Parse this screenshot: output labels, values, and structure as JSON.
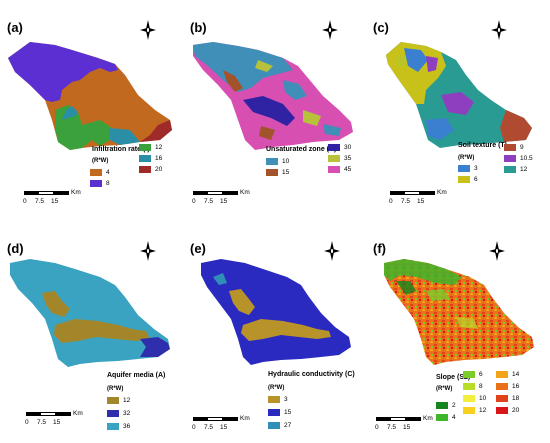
{
  "scalebar": {
    "unit": "Km",
    "ticks": [
      "0",
      "7.5",
      "15"
    ]
  },
  "rw_label": "(R*W)",
  "panels": [
    {
      "id": "a",
      "label": "(a)",
      "legend_title": "Infiltration rate (I)",
      "classes": [
        {
          "value": "4",
          "color": "#c1691f"
        },
        {
          "value": "8",
          "color": "#5b2fd1"
        },
        {
          "value": "12",
          "color": "#3aa13d"
        },
        {
          "value": "16",
          "color": "#2a8fa6"
        },
        {
          "value": "20",
          "color": "#9e2a2a"
        }
      ]
    },
    {
      "id": "b",
      "label": "(b)",
      "legend_title": "Unsaturated zone (N)",
      "classes": [
        {
          "value": "10",
          "color": "#3f8fb8"
        },
        {
          "value": "15",
          "color": "#a2532a"
        },
        {
          "value": "30",
          "color": "#2f23a3"
        },
        {
          "value": "35",
          "color": "#b7c23a"
        },
        {
          "value": "45",
          "color": "#d64fb1"
        }
      ]
    },
    {
      "id": "c",
      "label": "(c)",
      "legend_title": "Soil texture (T)",
      "classes": [
        {
          "value": "3",
          "color": "#3a7fd0"
        },
        {
          "value": "6",
          "color": "#c8c11a"
        },
        {
          "value": "9",
          "color": "#b04a30"
        },
        {
          "value": "10.5",
          "color": "#8e3fbf"
        },
        {
          "value": "12",
          "color": "#2a9b93"
        }
      ]
    },
    {
      "id": "d",
      "label": "(d)",
      "legend_title": "Aquifer media (A)",
      "classes": [
        {
          "value": "12",
          "color": "#a3862a"
        },
        {
          "value": "32",
          "color": "#2f2fae"
        },
        {
          "value": "36",
          "color": "#3aa3c2"
        }
      ]
    },
    {
      "id": "e",
      "label": "(e)",
      "legend_title": "Hydraulic conductivity (C)",
      "classes": [
        {
          "value": "3",
          "color": "#b8932a"
        },
        {
          "value": "15",
          "color": "#2b2ac0"
        },
        {
          "value": "27",
          "color": "#2f8fb8"
        }
      ]
    },
    {
      "id": "f",
      "label": "(f)",
      "legend_title": "Slope (S2)",
      "classes": [
        {
          "value": "2",
          "color": "#14841f"
        },
        {
          "value": "4",
          "color": "#3fb52a"
        },
        {
          "value": "6",
          "color": "#7ccc2a"
        },
        {
          "value": "8",
          "color": "#b9dc2a"
        },
        {
          "value": "10",
          "color": "#f2ef3a"
        },
        {
          "value": "12",
          "color": "#f7d11e"
        },
        {
          "value": "14",
          "color": "#f2a31a"
        },
        {
          "value": "16",
          "color": "#e8711a"
        },
        {
          "value": "18",
          "color": "#e0421a"
        },
        {
          "value": "20",
          "color": "#d8161a"
        }
      ]
    }
  ]
}
